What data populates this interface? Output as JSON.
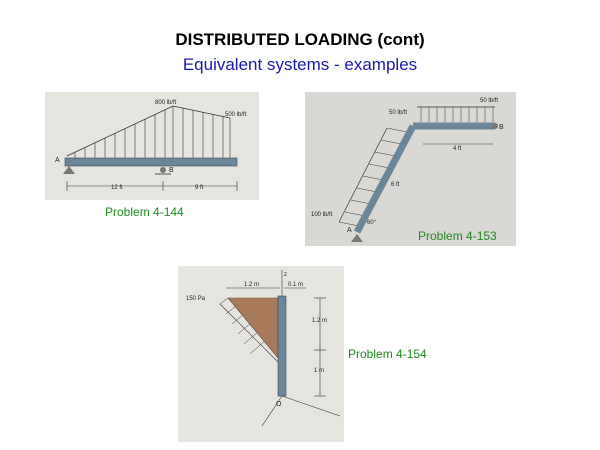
{
  "header": {
    "title": "DISTRIBUTED LOADING (cont)",
    "subtitle": "Equivalent systems - examples"
  },
  "figures": [
    {
      "caption": "Problem 4-144",
      "labels": {
        "load_peak": "800 lb/ft",
        "load_right": "500 lb/ft",
        "point_a": "A",
        "point_b": "B",
        "dim_left": "12 ft",
        "dim_right": "9 ft"
      }
    },
    {
      "caption": "Problem 4-153",
      "labels": {
        "load_top_left": "50 lb/ft",
        "load_top_right": "50 lb/ft",
        "load_incline": "100 lb/ft",
        "point_b": "B",
        "point_a": "A",
        "dim_top": "4 ft",
        "dim_incline": "6 ft",
        "angle": "60°"
      }
    },
    {
      "caption": "Problem 4-154",
      "labels": {
        "dim_top_left": "1.2 m",
        "dim_top_right": "0.1 m",
        "load": "150 Pa",
        "dim_right_upper": "1.2 m",
        "dim_right_lower": "1 m",
        "point_o": "O",
        "axis_z": "z"
      }
    }
  ],
  "colors": {
    "title": "#000000",
    "subtitle": "#1a1aa6",
    "caption": "#1e8a1e",
    "beam": "#6b8699",
    "wedge": "#a87a5c",
    "photo_bg": "#e6e4df"
  }
}
